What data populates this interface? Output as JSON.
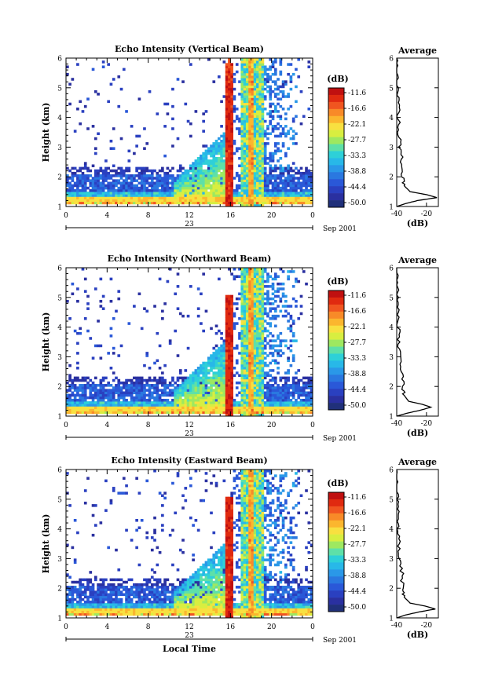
{
  "figure": {
    "time_axis_label": "Local Time",
    "date_label": "Sep 2001",
    "day_label": "23",
    "colorbar_unit": "(dB)",
    "colorbar_levels": [
      "-11.6",
      "-16.6",
      "-22.1",
      "-27.7",
      "-33.3",
      "-38.8",
      "-44.4",
      "-50.0"
    ],
    "colorbar_colors": [
      "#c01010",
      "#e02a10",
      "#f05520",
      "#f88a28",
      "#fbb62e",
      "#f8e040",
      "#d8ee40",
      "#9ee860",
      "#5ee0a8",
      "#2ed0d8",
      "#28b8e8",
      "#2a98e8",
      "#2a78e0",
      "#2a58d8",
      "#2a40c0",
      "#2a30a0",
      "#20307a"
    ],
    "average_title": "Average",
    "average_unit": "(dB)"
  },
  "chart_data": [
    {
      "type": "heatmap",
      "title": "Echo Intensity (Vertical Beam)",
      "ylabel": "Height (km)",
      "xlabel": "",
      "x_ticks": [
        "0",
        "4",
        "8",
        "12",
        "16",
        "20",
        "0"
      ],
      "y_ticks": [
        "1",
        "2",
        "3",
        "4",
        "5",
        "6"
      ],
      "xlim": [
        0,
        24
      ],
      "ylim": [
        1,
        6
      ],
      "colorbar_range_db": [
        -50.0,
        -11.6
      ],
      "features": {
        "boundary_layer_top_km": 2.1,
        "strong_echo_band_km": [
          1.1,
          1.4
        ],
        "intense_column_hours": [
          15.6,
          16.2
        ],
        "deep_echo_hours": [
          17.0,
          19.0
        ],
        "convective_growth_hours": [
          11,
          15.5
        ]
      }
    },
    {
      "type": "line",
      "title": "Average",
      "xlabel": "(dB)",
      "x_ticks": [
        "-40",
        "-20"
      ],
      "y_ticks": [
        "1",
        "2",
        "3",
        "4",
        "5",
        "6"
      ],
      "xlim": [
        -40,
        -12
      ],
      "ylim": [
        1,
        6
      ],
      "profile": [
        {
          "height_km": 1.0,
          "db": -40
        },
        {
          "height_km": 1.1,
          "db": -34
        },
        {
          "height_km": 1.2,
          "db": -26
        },
        {
          "height_km": 1.3,
          "db": -13
        },
        {
          "height_km": 1.4,
          "db": -20
        },
        {
          "height_km": 1.5,
          "db": -31
        },
        {
          "height_km": 1.7,
          "db": -35
        },
        {
          "height_km": 2.0,
          "db": -36
        },
        {
          "height_km": 2.5,
          "db": -36.5
        },
        {
          "height_km": 3.0,
          "db": -38
        },
        {
          "height_km": 3.5,
          "db": -38.5
        },
        {
          "height_km": 4.0,
          "db": -39
        },
        {
          "height_km": 4.5,
          "db": -38.5
        },
        {
          "height_km": 5.0,
          "db": -39.5
        },
        {
          "height_km": 5.5,
          "db": -40
        },
        {
          "height_km": 6.0,
          "db": -40
        }
      ]
    },
    {
      "type": "heatmap",
      "title": "Echo Intensity (Northward Beam)",
      "ylabel": "Height (km)",
      "xlabel": "",
      "x_ticks": [
        "0",
        "4",
        "8",
        "12",
        "16",
        "20",
        "0"
      ],
      "y_ticks": [
        "1",
        "2",
        "3",
        "4",
        "5",
        "6"
      ],
      "xlim": [
        0,
        24
      ],
      "ylim": [
        1,
        6
      ],
      "colorbar_range_db": [
        -50.0,
        -11.6
      ],
      "features": {
        "boundary_layer_top_km": 2.1,
        "strong_echo_band_km": [
          1.1,
          1.4
        ],
        "intense_column_hours": [
          15.6,
          16.2
        ],
        "deep_echo_hours": [
          17.0,
          19.0
        ],
        "convective_growth_hours": [
          11,
          15.5
        ]
      }
    },
    {
      "type": "line",
      "title": "Average",
      "xlabel": "(dB)",
      "x_ticks": [
        "-40",
        "-20"
      ],
      "y_ticks": [
        "1",
        "2",
        "3",
        "4",
        "5",
        "6"
      ],
      "xlim": [
        -40,
        -12
      ],
      "ylim": [
        1,
        6
      ],
      "profile": [
        {
          "height_km": 1.0,
          "db": -40
        },
        {
          "height_km": 1.1,
          "db": -33
        },
        {
          "height_km": 1.2,
          "db": -24
        },
        {
          "height_km": 1.3,
          "db": -17
        },
        {
          "height_km": 1.4,
          "db": -23
        },
        {
          "height_km": 1.5,
          "db": -32
        },
        {
          "height_km": 1.7,
          "db": -35
        },
        {
          "height_km": 2.0,
          "db": -36
        },
        {
          "height_km": 2.5,
          "db": -36.5
        },
        {
          "height_km": 3.0,
          "db": -38
        },
        {
          "height_km": 3.5,
          "db": -38.5
        },
        {
          "height_km": 4.0,
          "db": -39
        },
        {
          "height_km": 4.5,
          "db": -38.5
        },
        {
          "height_km": 5.0,
          "db": -39.5
        },
        {
          "height_km": 5.5,
          "db": -40
        },
        {
          "height_km": 6.0,
          "db": -40
        }
      ]
    },
    {
      "type": "heatmap",
      "title": "Echo Intensity (Eastward Beam)",
      "ylabel": "Height (km)",
      "xlabel": "Local Time",
      "x_ticks": [
        "0",
        "4",
        "8",
        "12",
        "16",
        "20",
        "0"
      ],
      "y_ticks": [
        "1",
        "2",
        "3",
        "4",
        "5",
        "6"
      ],
      "xlim": [
        0,
        24
      ],
      "ylim": [
        1,
        6
      ],
      "colorbar_range_db": [
        -50.0,
        -11.6
      ],
      "features": {
        "boundary_layer_top_km": 2.1,
        "strong_echo_band_km": [
          1.1,
          1.4
        ],
        "intense_column_hours": [
          15.6,
          16.2
        ],
        "deep_echo_hours": [
          17.0,
          19.0
        ],
        "convective_growth_hours": [
          11,
          15.5
        ]
      }
    },
    {
      "type": "line",
      "title": "Average",
      "xlabel": "(dB)",
      "x_ticks": [
        "-40",
        "-20"
      ],
      "y_ticks": [
        "1",
        "2",
        "3",
        "4",
        "5",
        "6"
      ],
      "xlim": [
        -40,
        -12
      ],
      "ylim": [
        1,
        6
      ],
      "profile": [
        {
          "height_km": 1.0,
          "db": -40
        },
        {
          "height_km": 1.1,
          "db": -34
        },
        {
          "height_km": 1.2,
          "db": -25
        },
        {
          "height_km": 1.3,
          "db": -14
        },
        {
          "height_km": 1.4,
          "db": -21
        },
        {
          "height_km": 1.5,
          "db": -31
        },
        {
          "height_km": 1.7,
          "db": -35
        },
        {
          "height_km": 2.0,
          "db": -36
        },
        {
          "height_km": 2.5,
          "db": -36.5
        },
        {
          "height_km": 3.0,
          "db": -38
        },
        {
          "height_km": 3.5,
          "db": -38.5
        },
        {
          "height_km": 4.0,
          "db": -39
        },
        {
          "height_km": 4.5,
          "db": -38.5
        },
        {
          "height_km": 5.0,
          "db": -39.5
        },
        {
          "height_km": 5.5,
          "db": -40
        },
        {
          "height_km": 6.0,
          "db": -40
        }
      ]
    }
  ]
}
